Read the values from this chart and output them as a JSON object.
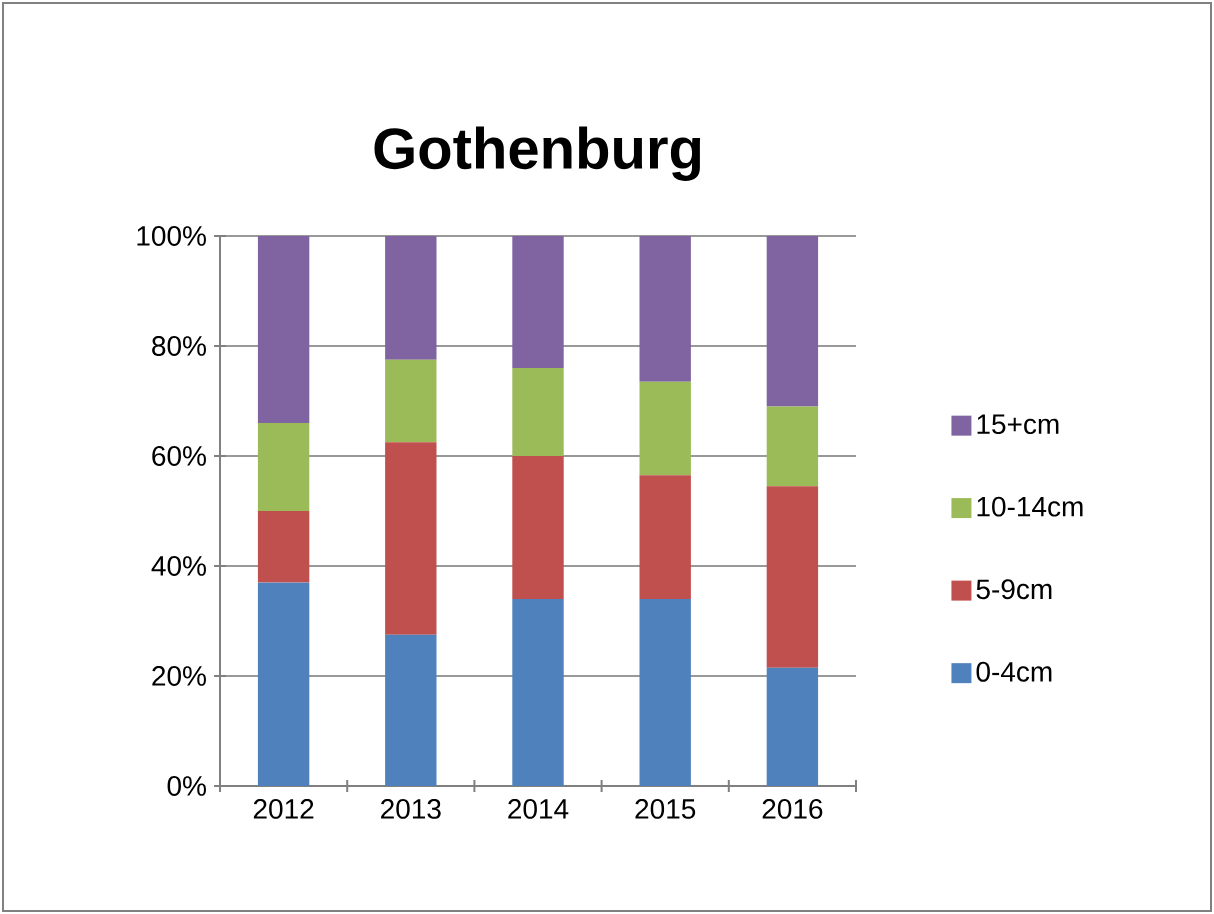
{
  "chart_data": {
    "type": "bar",
    "title": "Gothenburg",
    "stacked": true,
    "grid": "y",
    "legend": "right",
    "categories": [
      "2012",
      "2013",
      "2014",
      "2015",
      "2016"
    ],
    "series": [
      {
        "name": "0-4cm",
        "color": "#4f81bd",
        "values": [
          37,
          27.5,
          34,
          34,
          21.5
        ]
      },
      {
        "name": "5-9cm",
        "color": "#c0504d",
        "values": [
          13,
          35,
          26,
          22.5,
          33
        ]
      },
      {
        "name": "10-14cm",
        "color": "#9bbb59",
        "values": [
          16,
          15,
          16,
          17,
          14.5
        ]
      },
      {
        "name": "15+cm",
        "color": "#8064a2",
        "values": [
          34,
          22.5,
          24,
          26.5,
          31
        ]
      }
    ],
    "ylim": [
      0,
      100
    ],
    "yticks": [
      {
        "value": 0,
        "label": "0%"
      },
      {
        "value": 20,
        "label": "20%"
      },
      {
        "value": 40,
        "label": "40%"
      },
      {
        "value": 60,
        "label": "60%"
      },
      {
        "value": 80,
        "label": "80%"
      },
      {
        "value": 100,
        "label": "100%"
      }
    ]
  }
}
